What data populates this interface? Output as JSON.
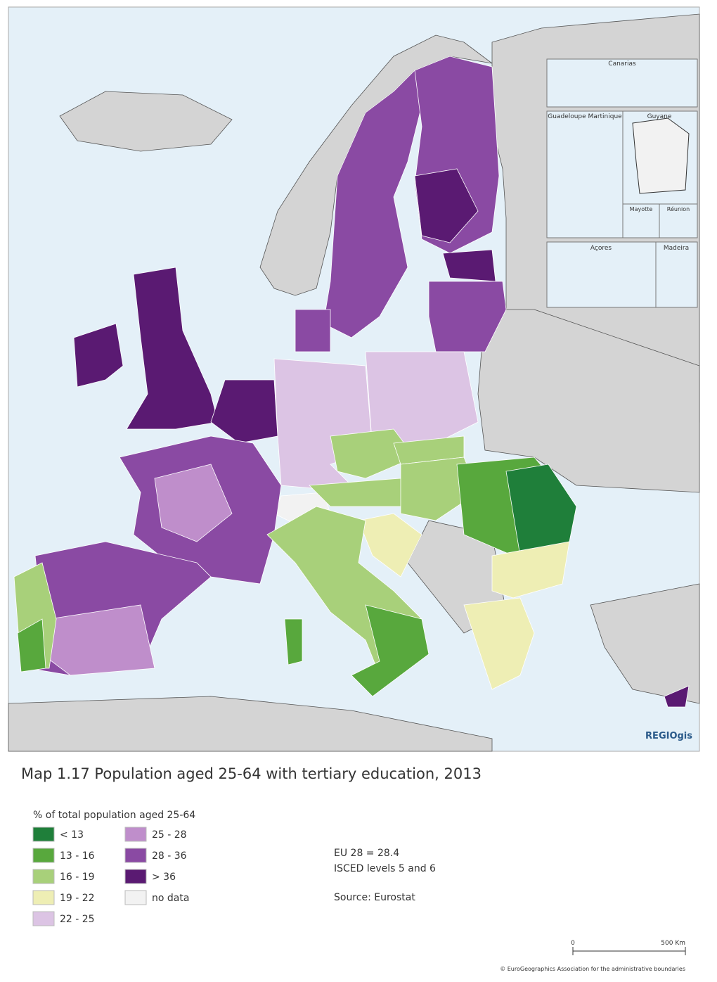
{
  "map_title": "Map 1.17 Population aged 25-64 with tertiary education, 2013",
  "insets": [
    "Canarias",
    "Guadeloupe\nMartinique",
    "Guyane",
    "Mayotte",
    "Réunion",
    "Açores",
    "Madeira"
  ],
  "watermark": "REGIOgis",
  "legend": {
    "title": "% of total population aged 25-64",
    "items": [
      {
        "label": "< 13",
        "color": "#1f7f3a"
      },
      {
        "label": "13 - 16",
        "color": "#58a83d"
      },
      {
        "label": "16 - 19",
        "color": "#a8d07a"
      },
      {
        "label": "19 - 22",
        "color": "#eeeeb4"
      },
      {
        "label": "22 - 25",
        "color": "#dcc4e4"
      },
      {
        "label": "25 - 28",
        "color": "#bf8ecb"
      },
      {
        "label": "28 - 36",
        "color": "#8a4aa3"
      },
      {
        "label": "> 36",
        "color": "#5a1a72"
      },
      {
        "label": "no data",
        "color": "#f2f2f2"
      }
    ]
  },
  "notes": [
    "EU 28 = 28.4",
    "ISCED levels 5 and 6",
    "Source: Eurostat"
  ],
  "scale": {
    "start": "0",
    "end": "500 Km"
  },
  "credit": "© EuroGeographics Association for the administrative boundaries"
}
